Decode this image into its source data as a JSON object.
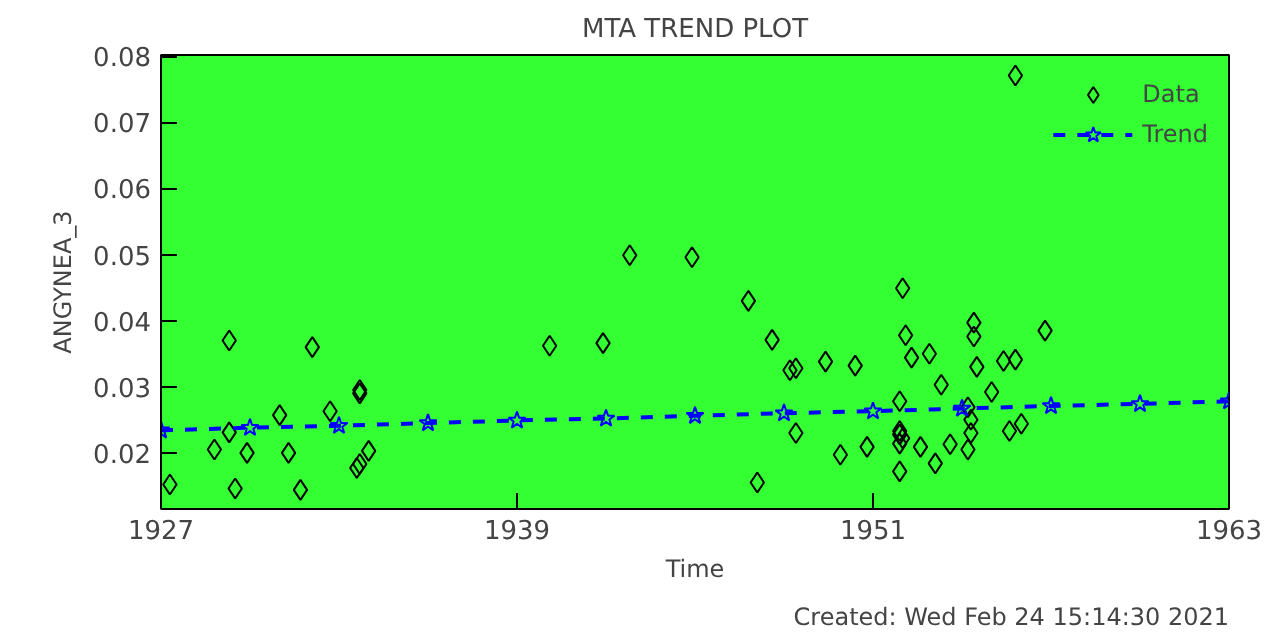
{
  "chart_data": {
    "type": "scatter",
    "title": "MTA TREND PLOT",
    "xlabel": "Time",
    "ylabel": "ANGYNEA_3",
    "annotations": [
      "Created: Wed Feb 24 15:14:30 2021"
    ],
    "xlim": [
      1927,
      1963
    ],
    "xticks": [
      1927,
      1939,
      1951,
      1963
    ],
    "ylim": [
      0.0115,
      0.0802
    ],
    "yticks": [
      0.02,
      0.03,
      0.04,
      0.05,
      0.06,
      0.07,
      0.08
    ],
    "grid": false,
    "legend": "top right",
    "marker": "diamond",
    "series": [
      {
        "name": "Data",
        "color": "#000000",
        "x": [
          1927.3,
          1929.3,
          1928.8,
          1929.3,
          1929.5,
          1929.9,
          1931.0,
          1931.3,
          1931.7,
          1932.1,
          1932.7,
          1933.7,
          1933.7,
          1933.6,
          1933.7,
          1934.0,
          1940.1,
          1941.9,
          1942.8,
          1944.9,
          1946.8,
          1947.6,
          1948.2,
          1948.4,
          1948.4,
          1947.1,
          1949.4,
          1949.9,
          1950.4,
          1950.8,
          1952.0,
          1952.1,
          1952.3,
          1952.9,
          1951.9,
          1951.9,
          1953.3,
          1952.6,
          1953.1,
          1953.6,
          1951.9,
          1951.9,
          1952.0,
          1951.9,
          1954.4,
          1954.4,
          1954.5,
          1954.2,
          1954.2,
          1954.3,
          1954.3,
          1955.0,
          1955.4,
          1955.8,
          1955.6,
          1956.0,
          1956.8,
          1955.8
        ],
        "values": [
          0.0152,
          0.037,
          0.0205,
          0.0231,
          0.0146,
          0.02,
          0.0257,
          0.02,
          0.0144,
          0.036,
          0.0263,
          0.0295,
          0.029,
          0.0177,
          0.0183,
          0.0203,
          0.0362,
          0.0366,
          0.0499,
          0.0496,
          0.043,
          0.0371,
          0.0325,
          0.0328,
          0.023,
          0.0155,
          0.0338,
          0.0197,
          0.0332,
          0.0209,
          0.0449,
          0.0378,
          0.0344,
          0.035,
          0.0278,
          0.0172,
          0.0303,
          0.0209,
          0.0184,
          0.0213,
          0.0228,
          0.0233,
          0.0222,
          0.0214,
          0.0397,
          0.0376,
          0.033,
          0.0269,
          0.0205,
          0.023,
          0.025,
          0.0292,
          0.0339,
          0.0341,
          0.0233,
          0.0244,
          0.0385,
          0.0771
        ]
      },
      {
        "name": "Trend",
        "type": "line",
        "color": "#0000ff",
        "marker": "star",
        "line_style": "dashed",
        "x": [
          1927,
          1930,
          1933,
          1936,
          1939,
          1942,
          1945,
          1948,
          1951,
          1954,
          1957,
          1960,
          1963
        ],
        "values": [
          0.0234,
          0.0238,
          0.0241,
          0.0245,
          0.0249,
          0.0252,
          0.0256,
          0.026,
          0.0263,
          0.0267,
          0.0271,
          0.0274,
          0.0278
        ]
      }
    ]
  }
}
